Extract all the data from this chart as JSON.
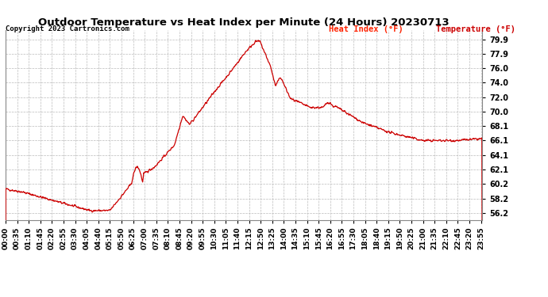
{
  "title": "Outdoor Temperature vs Heat Index per Minute (24 Hours) 20230713",
  "copyright": "Copyright 2023 Cartronics.com",
  "legend_heat_index": "Heat Index (°F)",
  "legend_temperature": "Temperature (°F)",
  "legend_heat_index_color": "#ff2200",
  "legend_temperature_color": "#cc0000",
  "line_color": "#cc0000",
  "background_color": "#ffffff",
  "grid_color": "#bbbbbb",
  "title_color": "#000000",
  "copyright_color": "#000000",
  "yticks": [
    56.2,
    58.2,
    60.2,
    62.1,
    64.1,
    66.1,
    68.1,
    70.0,
    72.0,
    74.0,
    76.0,
    77.9,
    79.9
  ],
  "ylim": [
    55.3,
    81.2
  ],
  "xlim_min": 0,
  "xlim_max": 1439,
  "xtick_step": 35,
  "title_fontsize": 9.5,
  "tick_fontsize": 7.0,
  "copyright_fontsize": 6.5,
  "legend_fontsize": 7.5,
  "line_width": 0.9
}
